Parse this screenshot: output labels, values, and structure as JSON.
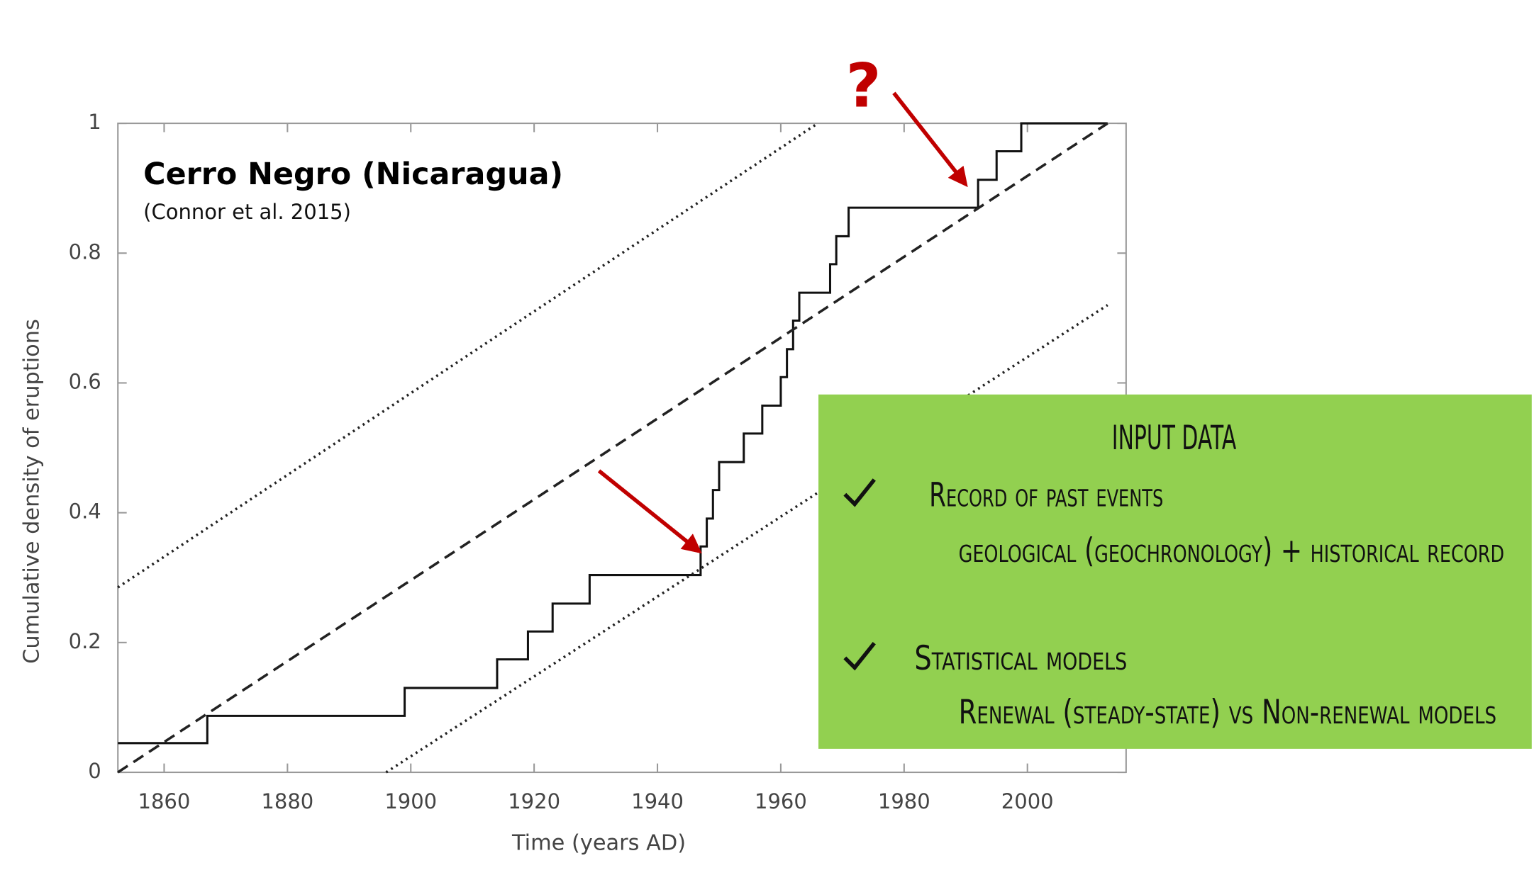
{
  "chart_data": {
    "type": "line",
    "title": "Cerro Negro (Nicaragua)",
    "subtitle": "(Connor et al. 2015)",
    "annotation": "?",
    "x_label": "Time (years AD)",
    "y_label": "Cumulative density of eruptions",
    "xlim": [
      1852.5,
      2016
    ],
    "ylim": [
      0,
      1
    ],
    "xticks": [
      1860,
      1880,
      1900,
      1920,
      1940,
      1960,
      1980,
      2000
    ],
    "yticks": [
      0,
      0.2,
      0.4,
      0.6,
      0.8,
      1
    ],
    "grid": false,
    "series": [
      {
        "style": "step",
        "color": "#111111",
        "x": [
          1852.5,
          1867,
          1899,
          1914,
          1919,
          1923,
          1929,
          1947,
          1948,
          1949,
          1950,
          1954,
          1957,
          1960,
          1961,
          1962,
          1963,
          1968,
          1969,
          1971,
          1992,
          1995,
          1999,
          2013
        ],
        "values": [
          0.045,
          0.087,
          0.13,
          0.174,
          0.217,
          0.26,
          0.304,
          0.348,
          0.391,
          0.435,
          0.478,
          0.522,
          0.565,
          0.609,
          0.652,
          0.696,
          0.739,
          0.783,
          0.826,
          0.87,
          0.913,
          0.957,
          1.0,
          1.0
        ]
      },
      {
        "style": "dashed",
        "color": "#222222",
        "x": [
          1852.5,
          2013
        ],
        "values": [
          0,
          1
        ]
      },
      {
        "style": "dotted",
        "color": "#222222",
        "x": [
          1852.5,
          1966
        ],
        "values": [
          0.285,
          1
        ]
      },
      {
        "style": "dotted",
        "color": "#222222",
        "x": [
          1896,
          2013
        ],
        "values": [
          0,
          0.72
        ]
      }
    ]
  },
  "input_panel": {
    "title": "INPUT DATA",
    "items": [
      {
        "heading": "Record of past events",
        "detail": "geological (geochronology) + historical record"
      },
      {
        "heading": "Statistical models",
        "detail": "Renewal (steady-state) vs Non-renewal models"
      }
    ]
  }
}
